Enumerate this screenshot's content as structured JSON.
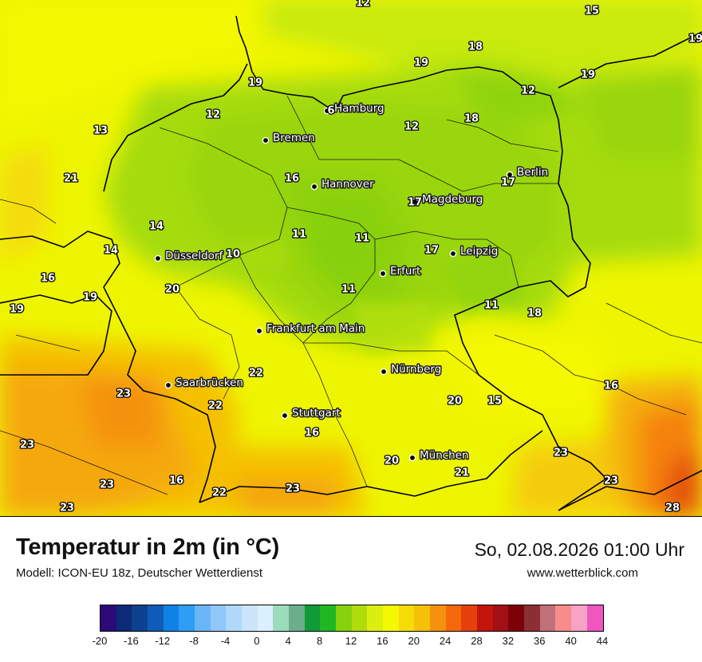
{
  "title": "Temperatur in 2m (in °C)",
  "model": "Modell: ICON-EU 18z, Deutscher Wetterdienst",
  "datetime": "So, 02.08.2026 01:00 Uhr",
  "website": "www.wetterblick.com",
  "legend": {
    "colors": [
      "#2c0a78",
      "#0b2a78",
      "#0d4190",
      "#0e5cb8",
      "#0f82e6",
      "#2d9df5",
      "#6bb6f7",
      "#8fc8f8",
      "#b0d8fa",
      "#cce4fb",
      "#dcefff",
      "#9bdcbc",
      "#6cae8c",
      "#109a38",
      "#20b822",
      "#86d20c",
      "#b0dc0c",
      "#dcee10",
      "#f4f800",
      "#f5dc08",
      "#f5c005",
      "#f5920d",
      "#f5680c",
      "#e5410c",
      "#c3140d",
      "#a20f14",
      "#7c0008",
      "#8c2f35",
      "#c07076",
      "#f88c8c",
      "#f8a2c6",
      "#f055c0"
    ],
    "ticks": [
      "-20",
      "-16",
      "-12",
      "-8",
      "-4",
      "0",
      "4",
      "8",
      "12",
      "16",
      "20",
      "24",
      "28",
      "32",
      "36",
      "40",
      "44"
    ]
  },
  "cities": [
    {
      "name": "Hamburg"
    },
    {
      "name": "Bremen"
    },
    {
      "name": "Hannover"
    },
    {
      "name": "Berlin"
    },
    {
      "name": "Magdeburg"
    },
    {
      "name": "Leipzig"
    },
    {
      "name": "Düsseldorf"
    },
    {
      "name": "Erfurt"
    },
    {
      "name": "Frankfurt am Main"
    },
    {
      "name": "Nürnberg"
    },
    {
      "name": "Saarbrücken"
    },
    {
      "name": "Stuttgart"
    },
    {
      "name": "München"
    }
  ],
  "temperature_labels": [
    "12",
    "15",
    "18",
    "19",
    "19",
    "12",
    "19",
    "19",
    "12",
    "6",
    "12",
    "18",
    "13",
    "21",
    "16",
    "17",
    "17",
    "14",
    "14",
    "10",
    "11",
    "11",
    "17",
    "16",
    "19",
    "20",
    "11",
    "11",
    "18",
    "19",
    "22",
    "23",
    "22",
    "20",
    "15",
    "16",
    "16",
    "23",
    "23",
    "20",
    "21",
    "23",
    "16",
    "23",
    "23",
    "22",
    "23",
    "28"
  ]
}
